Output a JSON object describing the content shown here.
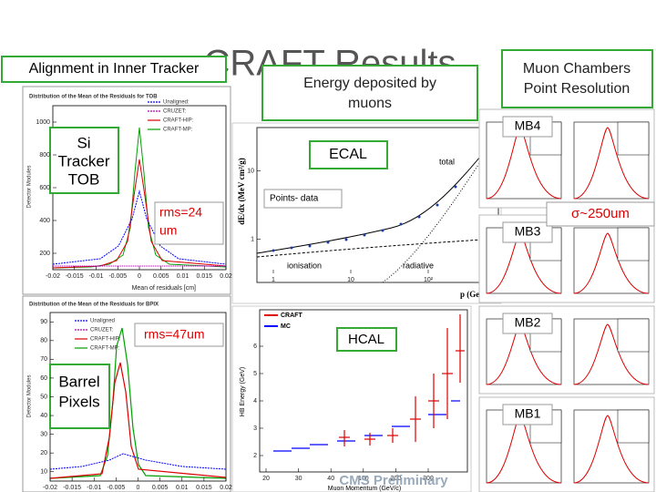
{
  "title": "CRAFT Results",
  "callouts": {
    "alignment": "Alignment in Inner Tracker",
    "energy": [
      "Energy deposited by",
      "muons"
    ],
    "muon": [
      "Muon Chambers",
      "Point Resolution"
    ]
  },
  "tob": {
    "title": "Distribution of the Mean of the Residuals for TOB",
    "ylabel": "Detector Modules",
    "xlabel": "Mean of residuals [cm]",
    "yticks": [
      200,
      400,
      600,
      800,
      1000
    ],
    "xticks": [
      -0.02,
      -0.015,
      -0.01,
      -0.005,
      0,
      0.005,
      0.01,
      0.015,
      0.02
    ],
    "legend": [
      "Unaligned:",
      "CRUZET:",
      "CRAFT-HIP:",
      "CRAFT-MP:"
    ],
    "label": [
      "Si",
      "Tracker",
      "TOB"
    ],
    "rms": [
      "rms=24",
      "um"
    ]
  },
  "bpix": {
    "title": "Distribution of the Mean of the Residuals for BPIX",
    "ylabel": "Detector Modules",
    "yticks": [
      10,
      20,
      30,
      40,
      50,
      60,
      70,
      80,
      90
    ],
    "xticks": [
      -0.02,
      -0.015,
      -0.01,
      -0.005,
      0,
      0.005,
      0.01,
      0.015,
      0.02
    ],
    "legend": [
      "Unaligned",
      "CRUZET:",
      "CRAFT-HIP:",
      "CRAFT-MP:"
    ],
    "label": [
      "Barrel",
      "Pixels"
    ],
    "rms": "rms=47um"
  },
  "ecal": {
    "ylabel": "dE/dx (MeV cm²/g)",
    "xlabel": "p (GeV/c)",
    "yticks": [
      1,
      10
    ],
    "xticks": [
      1,
      10,
      {
        "value": 100,
        "label": "10²"
      }
    ],
    "label": "ECAL",
    "total": "total",
    "points": "Points- data",
    "ionisation": "ionisation",
    "radiative": "radiative"
  },
  "hcal": {
    "ylabel": "HB Energy (GeV)",
    "xlabel": "Muon Momentum (GeV/c)",
    "yticks": [
      2,
      3,
      4,
      5,
      6
    ],
    "xticks": [
      20,
      30,
      40,
      100,
      200,
      300
    ],
    "legend": [
      "CRAFT",
      "MC"
    ],
    "label": "HCAL",
    "preliminary": "CMS Preliminary"
  },
  "muon_panels": [
    "MB4",
    "MB3",
    "MB2",
    "MB1"
  ],
  "resolution": "σ~250um"
}
